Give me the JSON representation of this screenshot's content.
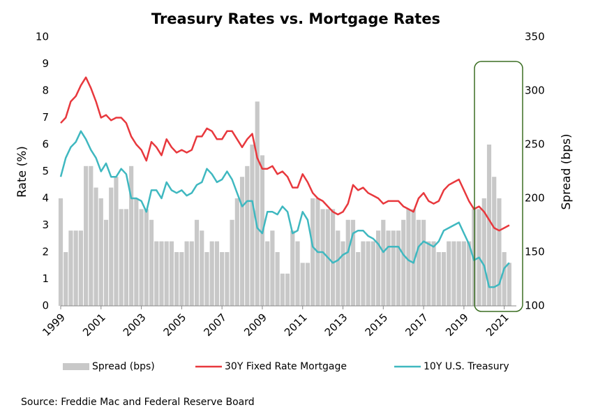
{
  "chart_data": {
    "type": "line",
    "title": "Treasury Rates vs. Mortgage Rates",
    "y_label": "Rate (%)",
    "y2_label": "Spread (bps)",
    "source": "Source: Freddie Mac and Federal Reserve Board",
    "legend": "bottom",
    "x": [
      1999,
      1999.25,
      1999.5,
      1999.75,
      2000,
      2000.25,
      2000.5,
      2000.75,
      2001,
      2001.25,
      2001.5,
      2001.75,
      2002,
      2002.25,
      2002.5,
      2002.75,
      2003,
      2003.25,
      2003.5,
      2003.75,
      2004,
      2004.25,
      2004.5,
      2004.75,
      2005,
      2005.25,
      2005.5,
      2005.75,
      2006,
      2006.25,
      2006.5,
      2006.75,
      2007,
      2007.25,
      2007.5,
      2007.75,
      2008,
      2008.25,
      2008.5,
      2008.75,
      2009,
      2009.25,
      2009.5,
      2009.75,
      2010,
      2010.25,
      2010.5,
      2010.75,
      2011,
      2011.25,
      2011.5,
      2011.75,
      2012,
      2012.25,
      2012.5,
      2012.75,
      2013,
      2013.25,
      2013.5,
      2013.75,
      2014,
      2014.25,
      2014.5,
      2014.75,
      2015,
      2015.25,
      2015.5,
      2015.75,
      2016,
      2016.25,
      2016.5,
      2016.75,
      2017,
      2017.25,
      2017.5,
      2017.75,
      2018,
      2018.25,
      2018.5,
      2018.75,
      2019,
      2019.25,
      2019.5,
      2019.75,
      2020,
      2020.25,
      2020.5,
      2020.75,
      2021,
      2021.25
    ],
    "series": [
      {
        "name": "Spread (bps)",
        "type": "bar",
        "axis": "y2",
        "color": "#c8c8c8",
        "values": [
          200,
          150,
          170,
          170,
          170,
          230,
          230,
          210,
          200,
          180,
          210,
          220,
          190,
          190,
          230,
          200,
          190,
          190,
          180,
          160,
          160,
          160,
          160,
          150,
          150,
          160,
          160,
          180,
          170,
          150,
          160,
          160,
          150,
          150,
          180,
          200,
          220,
          230,
          250,
          290,
          240,
          160,
          170,
          150,
          130,
          130,
          170,
          160,
          140,
          140,
          200,
          200,
          190,
          190,
          190,
          170,
          160,
          180,
          180,
          150,
          160,
          160,
          160,
          170,
          180,
          170,
          170,
          170,
          180,
          190,
          190,
          180,
          180,
          160,
          160,
          150,
          150,
          160,
          160,
          160,
          160,
          160,
          190,
          190,
          200,
          250,
          220,
          200,
          150,
          140
        ]
      },
      {
        "name": "30Y Fixed Rate Mortgage",
        "type": "line",
        "color": "#e8383d",
        "values": [
          6.8,
          7.0,
          7.6,
          7.8,
          8.2,
          8.5,
          8.1,
          7.6,
          7.0,
          7.1,
          6.9,
          7.0,
          7.0,
          6.8,
          6.3,
          6.0,
          5.8,
          5.4,
          6.1,
          5.9,
          5.6,
          6.2,
          5.9,
          5.7,
          5.8,
          5.7,
          5.8,
          6.3,
          6.3,
          6.6,
          6.5,
          6.2,
          6.2,
          6.5,
          6.5,
          6.2,
          5.9,
          6.2,
          6.4,
          5.5,
          5.1,
          5.1,
          5.2,
          4.9,
          5.0,
          4.8,
          4.4,
          4.4,
          4.9,
          4.6,
          4.2,
          4.0,
          3.9,
          3.7,
          3.5,
          3.4,
          3.5,
          3.8,
          4.5,
          4.3,
          4.4,
          4.2,
          4.1,
          4.0,
          3.8,
          3.9,
          3.9,
          3.9,
          3.7,
          3.6,
          3.5,
          4.0,
          4.2,
          3.9,
          3.8,
          3.9,
          4.3,
          4.5,
          4.6,
          4.7,
          4.3,
          3.9,
          3.6,
          3.7,
          3.5,
          3.2,
          2.9,
          2.8,
          2.9,
          3.0
        ]
      },
      {
        "name": "10Y U.S. Treasury",
        "type": "line",
        "color": "#3fb8c0",
        "values": [
          4.8,
          5.5,
          5.9,
          6.1,
          6.5,
          6.2,
          5.8,
          5.5,
          5.0,
          5.3,
          4.8,
          4.8,
          5.1,
          4.9,
          4.0,
          4.0,
          3.9,
          3.5,
          4.3,
          4.3,
          4.0,
          4.6,
          4.3,
          4.2,
          4.3,
          4.1,
          4.2,
          4.5,
          4.6,
          5.1,
          4.9,
          4.6,
          4.7,
          5.0,
          4.7,
          4.2,
          3.7,
          3.9,
          3.9,
          2.9,
          2.7,
          3.5,
          3.5,
          3.4,
          3.7,
          3.5,
          2.7,
          2.8,
          3.5,
          3.2,
          2.2,
          2.0,
          2.0,
          1.8,
          1.6,
          1.7,
          1.9,
          2.0,
          2.7,
          2.8,
          2.8,
          2.6,
          2.5,
          2.3,
          2.0,
          2.2,
          2.2,
          2.2,
          1.9,
          1.7,
          1.6,
          2.2,
          2.4,
          2.3,
          2.2,
          2.4,
          2.8,
          2.9,
          3.0,
          3.1,
          2.7,
          2.3,
          1.7,
          1.8,
          1.5,
          0.7,
          0.7,
          0.8,
          1.4,
          1.6
        ]
      }
    ],
    "xlim": [
      1999,
      2021.6
    ],
    "xticks": [
      1999,
      2001,
      2003,
      2005,
      2007,
      2009,
      2011,
      2013,
      2015,
      2017,
      2019,
      2021
    ],
    "ylim": [
      0,
      10
    ],
    "yticks": [
      0,
      1,
      2,
      3,
      4,
      5,
      6,
      7,
      8,
      9,
      10
    ],
    "y2lim": [
      100,
      350
    ],
    "y2ticks": [
      100,
      150,
      200,
      250,
      300,
      350
    ],
    "grid": false
  }
}
